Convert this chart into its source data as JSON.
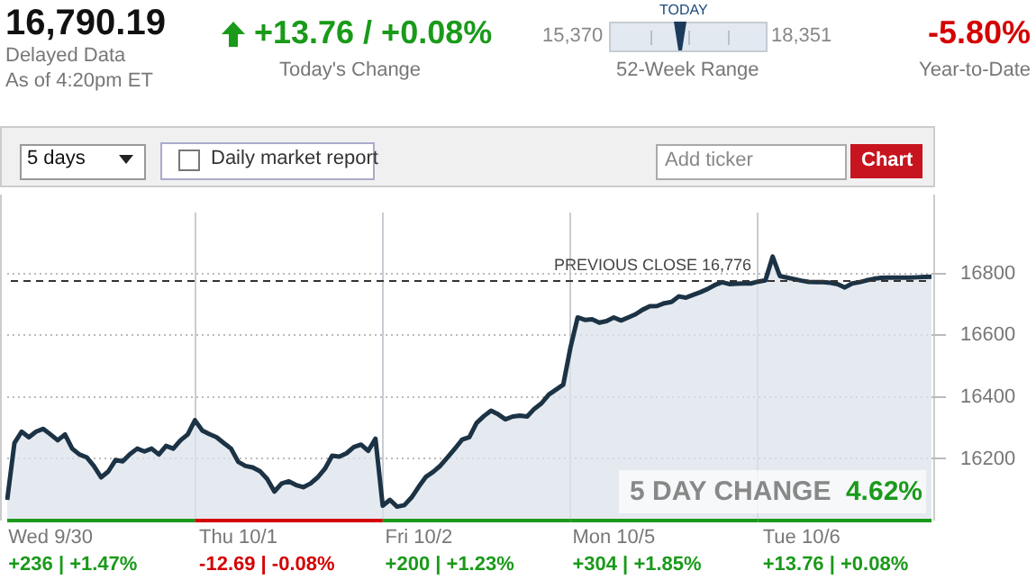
{
  "chart_data": {
    "type": "area",
    "title": "16,790.19",
    "annotations": [
      "Delayed Data",
      "As of 4:20pm ET",
      "+13.76 / +0.08%",
      "Today's Change",
      "15,370",
      "TODAY",
      "18,351",
      "52-Week Range",
      "-5.80%",
      "Year-to-Date",
      "5 days",
      "Daily market report",
      "Add ticker",
      "Chart",
      "+236 | +1.47%",
      "-12.69 | -0.08%",
      "+200 | +1.23%",
      "+304 | +1.85%",
      "+13.76 | +0.08%",
      "5 DAY CHANGE",
      "4.62%"
    ],
    "categories": [
      null,
      null,
      null,
      null,
      null,
      null,
      "Wed 9/30",
      null,
      null,
      null,
      null,
      null,
      null,
      null,
      null,
      null,
      null,
      null,
      null,
      null,
      null,
      null,
      null,
      null,
      null,
      null,
      null,
      null,
      null,
      null,
      null,
      null,
      "Thu 10/1",
      null,
      null,
      null,
      null,
      null,
      null,
      null,
      null,
      null,
      null,
      null,
      null,
      null,
      null,
      null,
      null,
      null,
      null,
      null,
      null,
      null,
      null,
      null,
      null,
      "Fri 10/2",
      null,
      null,
      null,
      null,
      null,
      null,
      null,
      null,
      null,
      null,
      null,
      null,
      null,
      null,
      null,
      null,
      null,
      null,
      null,
      null,
      null,
      null,
      null,
      null,
      null,
      null,
      "Mon 10/5",
      null,
      null,
      null,
      null,
      null,
      null,
      null,
      null,
      null,
      null,
      null,
      null,
      null,
      null,
      null,
      null,
      null,
      null,
      null,
      null,
      null,
      null,
      null,
      null,
      null,
      "Tue 10/6",
      null,
      null,
      null,
      null,
      null,
      null,
      null,
      null,
      null,
      null,
      null,
      null,
      null,
      null,
      null,
      null,
      null,
      null
    ],
    "series": [
      {
        "color": "#1c3345",
        "values": [
          16067,
          16251,
          16288,
          16270,
          16288,
          16297,
          16279,
          16260,
          16279,
          16233,
          16214,
          16205,
          16177,
          16140,
          16159,
          16196,
          16192,
          16215,
          16233,
          16224,
          16233,
          16214,
          16242,
          16233,
          16260,
          16279,
          16325,
          16292,
          16280,
          16270,
          16251,
          16233,
          16190,
          16177,
          16172,
          16160,
          16135,
          16094,
          16120,
          16127,
          16115,
          16108,
          16120,
          16140,
          16168,
          16210,
          16207,
          16218,
          16238,
          16246,
          16226,
          16265,
          16048,
          16067,
          16045,
          16050,
          16075,
          16110,
          16142,
          16158,
          16178,
          16205,
          16233,
          16262,
          16270,
          16316,
          16338,
          16356,
          16344,
          16328,
          16337,
          16340,
          16337,
          16362,
          16380,
          16408,
          16424,
          16440,
          16560,
          16658,
          16650,
          16652,
          16641,
          16646,
          16658,
          16648,
          16658,
          16668,
          16683,
          16694,
          16695,
          16704,
          16708,
          16726,
          16722,
          16731,
          16740,
          16750,
          16763,
          16772,
          16766,
          16767,
          16768,
          16768,
          16774,
          16778,
          16855,
          16792,
          16787,
          16782,
          16777,
          16773,
          16772,
          16772,
          16770,
          16766,
          16755,
          16768,
          16772,
          16778,
          16783,
          16786,
          16787,
          16787,
          16787,
          16787,
          16788,
          16789,
          16790
        ]
      }
    ],
    "ylim": [
      16000,
      17000
    ],
    "yticks": [
      16200,
      16400,
      16600,
      16800
    ],
    "grid": "y",
    "marker": "none",
    "line_style": "solid",
    "ref_lines": [
      {
        "axis": "y",
        "value": 16776,
        "label": "PREVIOUS CLOSE 16,776",
        "color": "#333333",
        "line_style": "dashed"
      }
    ]
  }
}
